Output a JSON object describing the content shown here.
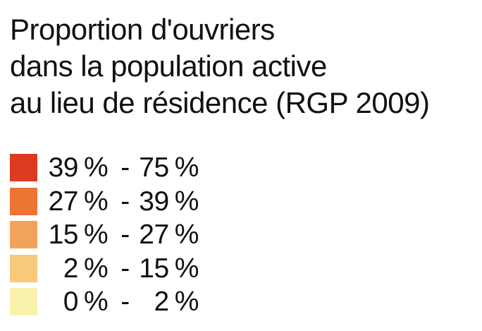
{
  "title": {
    "lines": [
      "Proportion d'ouvriers",
      "dans la population active",
      "au lieu de résidence (RGP 2009)"
    ]
  },
  "legend": {
    "percent_sign": "%",
    "separator": "-",
    "items": [
      {
        "color": "#da3b21",
        "from": "39",
        "to": "75"
      },
      {
        "color": "#ee7434",
        "from": "27",
        "to": "39"
      },
      {
        "color": "#f1a35c",
        "from": "15",
        "to": "27"
      },
      {
        "color": "#f8c97a",
        "from": "2",
        "to": "15"
      },
      {
        "color": "#f9f1ac",
        "from": "0",
        "to": "2"
      }
    ]
  },
  "colors": {
    "background": "#ffffff",
    "text": "#111111"
  }
}
